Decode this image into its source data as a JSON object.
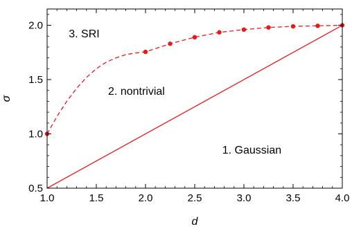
{
  "chart_data": {
    "type": "line",
    "xlabel": "d",
    "ylabel": "σ",
    "xlim": [
      1.0,
      4.0
    ],
    "ylim": [
      0.5,
      2.15
    ],
    "xticks": [
      "1.0",
      "1.5",
      "2.0",
      "2.5",
      "3.0",
      "3.5",
      "4.0"
    ],
    "yticks": [
      "0.5",
      "1.0",
      "1.5",
      "2.0"
    ],
    "grid": false,
    "series": [
      {
        "style": "solid",
        "color": "#e41a1c",
        "x": [
          1.0,
          4.0
        ],
        "y": [
          0.5,
          2.0
        ]
      },
      {
        "style": "dashed",
        "color": "#e41a1c",
        "x": [
          1.0,
          1.1,
          1.2,
          1.3,
          1.4,
          1.5,
          1.6,
          1.7,
          1.8,
          1.9,
          2.0,
          2.25,
          2.5,
          2.75,
          3.0,
          3.25,
          3.5,
          3.75,
          4.0
        ],
        "y": [
          1.0,
          1.16,
          1.3,
          1.42,
          1.52,
          1.6,
          1.66,
          1.7,
          1.73,
          1.745,
          1.755,
          1.83,
          1.89,
          1.935,
          1.96,
          1.98,
          1.99,
          1.995,
          2.0
        ]
      },
      {
        "style": "points",
        "color": "#e41a1c",
        "x": [
          1.0,
          2.0,
          2.25,
          2.5,
          2.75,
          3.0,
          3.25,
          3.5,
          3.75,
          4.0
        ],
        "y": [
          1.0,
          1.755,
          1.83,
          1.89,
          1.935,
          1.96,
          1.98,
          1.99,
          1.995,
          2.0
        ]
      }
    ],
    "annotations": [
      {
        "text": "3. SRI",
        "x": 1.22,
        "y": 1.89
      },
      {
        "text": "2. nontrivial",
        "x": 1.62,
        "y": 1.36
      },
      {
        "text": "1. Gaussian",
        "x": 2.78,
        "y": 0.82
      }
    ]
  }
}
